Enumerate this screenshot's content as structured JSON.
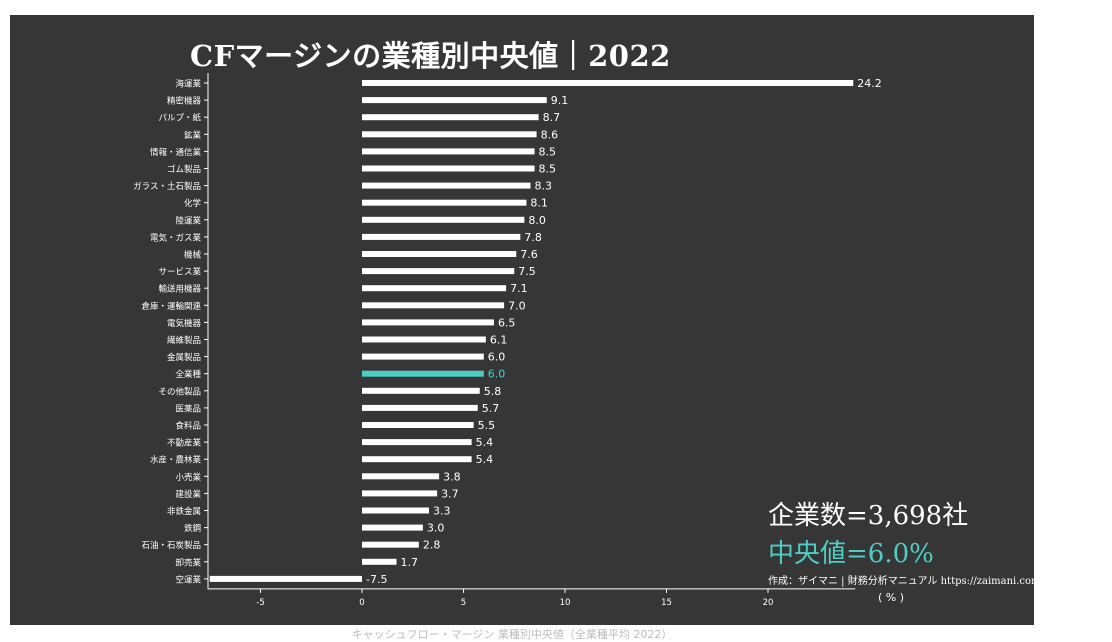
{
  "chart_data": {
    "type": "bar",
    "orientation": "horizontal",
    "title": "CFマージンの業種別中央値｜2022",
    "xlabel": "( % )",
    "xlim": [
      -7.5,
      24.2
    ],
    "xticks": [
      -5,
      0,
      5,
      10,
      15,
      20
    ],
    "grid": false,
    "categories": [
      "海運業",
      "精密機器",
      "パルプ・紙",
      "鉱業",
      "情報・通信業",
      "ゴム製品",
      "ガラス・土石製品",
      "化学",
      "陸運業",
      "電気・ガス業",
      "機械",
      "サービス業",
      "輸送用機器",
      "倉庫・運輸関連",
      "電気機器",
      "繊維製品",
      "金属製品",
      "全業種",
      "その他製品",
      "医薬品",
      "食料品",
      "不動産業",
      "水産・農林業",
      "小売業",
      "建設業",
      "非鉄金属",
      "鉄鋼",
      "石油・石炭製品",
      "卸売業",
      "空運業"
    ],
    "values": [
      24.2,
      9.1,
      8.7,
      8.6,
      8.5,
      8.5,
      8.3,
      8.1,
      8.0,
      7.8,
      7.6,
      7.5,
      7.1,
      7.0,
      6.5,
      6.1,
      6.0,
      6.0,
      5.8,
      5.7,
      5.5,
      5.4,
      5.4,
      3.8,
      3.7,
      3.3,
      3.0,
      2.8,
      1.7,
      -7.5
    ],
    "value_labels": [
      "24.2",
      "9.1",
      "8.7",
      "8.6",
      "8.5",
      "8.5",
      "8.3",
      "8.1",
      "8.0",
      "7.8",
      "7.6",
      "7.5",
      "7.1",
      "7.0",
      "6.5",
      "6.1",
      "6.0",
      "6.0",
      "5.8",
      "5.7",
      "5.5",
      "5.4",
      "5.4",
      "3.8",
      "3.7",
      "3.3",
      "3.0",
      "2.8",
      "1.7",
      "-7.5"
    ],
    "highlight_category": "全業種",
    "colors": {
      "background": "#363636",
      "bar": "#ffffff",
      "highlight": "#4ecdc4",
      "text": "#ffffff"
    }
  },
  "stats": {
    "company_count": "企業数=3,698社",
    "median": "中央値=6.0%"
  },
  "credit": "作成：ザイマニ | 財務分析マニュアル https://zaimani.com/",
  "footer": "キャッシュフロー・マージン 業種別中央値（全業種平均 2022）"
}
